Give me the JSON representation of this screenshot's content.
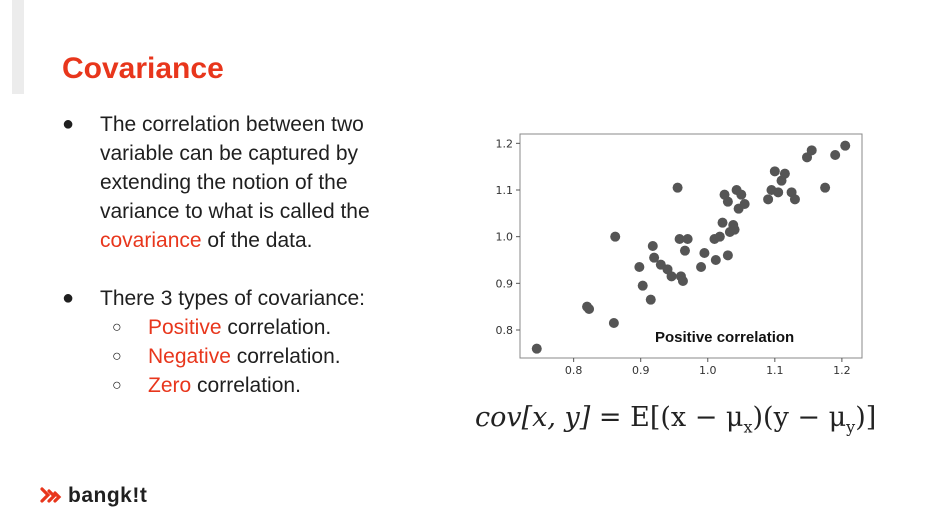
{
  "title": "Covariance",
  "bullets": {
    "b1_lines": [
      "The correlation between two",
      "variable can be captured by",
      "extending the notion of the",
      "variance to what is called the"
    ],
    "b1_highlight": "covariance",
    "b1_tail": " of the data.",
    "b2": "There 3 types of covariance:",
    "sub": [
      {
        "highlight": "Positive",
        "rest": " correlation."
      },
      {
        "highlight": "Negative",
        "rest": " correlation."
      },
      {
        "highlight": "Zero",
        "rest": " correlation."
      }
    ]
  },
  "colors": {
    "accent": "#e8361c",
    "point": "#555555"
  },
  "formula": {
    "lhs": "cov[x, y]",
    "eq": " = E[(x − μ",
    "sub_x": "x",
    "mid": ")(y − μ",
    "sub_y": "y",
    "end": ")]"
  },
  "logo": {
    "icon": "bangkit-logo-icon",
    "text": "bangk!t"
  },
  "chart_data": {
    "type": "scatter",
    "annotation": "Positive correlation",
    "xlim": [
      0.72,
      1.23
    ],
    "ylim": [
      0.74,
      1.22
    ],
    "xticks": [
      0.8,
      0.9,
      1.0,
      1.1,
      1.2
    ],
    "yticks": [
      0.8,
      0.9,
      1.0,
      1.1,
      1.2
    ],
    "xtick_labels": [
      "0.8",
      "0.9",
      "1.0",
      "1.1",
      "1.2"
    ],
    "ytick_labels": [
      "0.8",
      "0.9",
      "1.0",
      "1.1",
      "1.2"
    ],
    "grid": false,
    "points": [
      [
        0.745,
        0.76
      ],
      [
        0.82,
        0.85
      ],
      [
        0.823,
        0.845
      ],
      [
        0.86,
        0.815
      ],
      [
        0.862,
        1.0
      ],
      [
        0.898,
        0.935
      ],
      [
        0.903,
        0.895
      ],
      [
        0.915,
        0.865
      ],
      [
        0.918,
        0.98
      ],
      [
        0.92,
        0.955
      ],
      [
        0.93,
        0.94
      ],
      [
        0.94,
        0.93
      ],
      [
        0.946,
        0.915
      ],
      [
        0.955,
        1.105
      ],
      [
        0.958,
        0.995
      ],
      [
        0.96,
        0.915
      ],
      [
        0.963,
        0.905
      ],
      [
        0.966,
        0.97
      ],
      [
        0.97,
        0.995
      ],
      [
        0.99,
        0.935
      ],
      [
        0.995,
        0.965
      ],
      [
        1.01,
        0.995
      ],
      [
        1.012,
        0.95
      ],
      [
        1.018,
        1.0
      ],
      [
        1.022,
        1.03
      ],
      [
        1.025,
        1.09
      ],
      [
        1.03,
        1.075
      ],
      [
        1.03,
        0.96
      ],
      [
        1.033,
        1.01
      ],
      [
        1.038,
        1.025
      ],
      [
        1.04,
        1.015
      ],
      [
        1.043,
        1.1
      ],
      [
        1.046,
        1.06
      ],
      [
        1.05,
        1.09
      ],
      [
        1.055,
        1.07
      ],
      [
        1.09,
        1.08
      ],
      [
        1.095,
        1.1
      ],
      [
        1.1,
        1.14
      ],
      [
        1.105,
        1.095
      ],
      [
        1.11,
        1.12
      ],
      [
        1.115,
        1.135
      ],
      [
        1.125,
        1.095
      ],
      [
        1.13,
        1.08
      ],
      [
        1.148,
        1.17
      ],
      [
        1.155,
        1.185
      ],
      [
        1.175,
        1.105
      ],
      [
        1.19,
        1.175
      ],
      [
        1.205,
        1.195
      ]
    ]
  }
}
